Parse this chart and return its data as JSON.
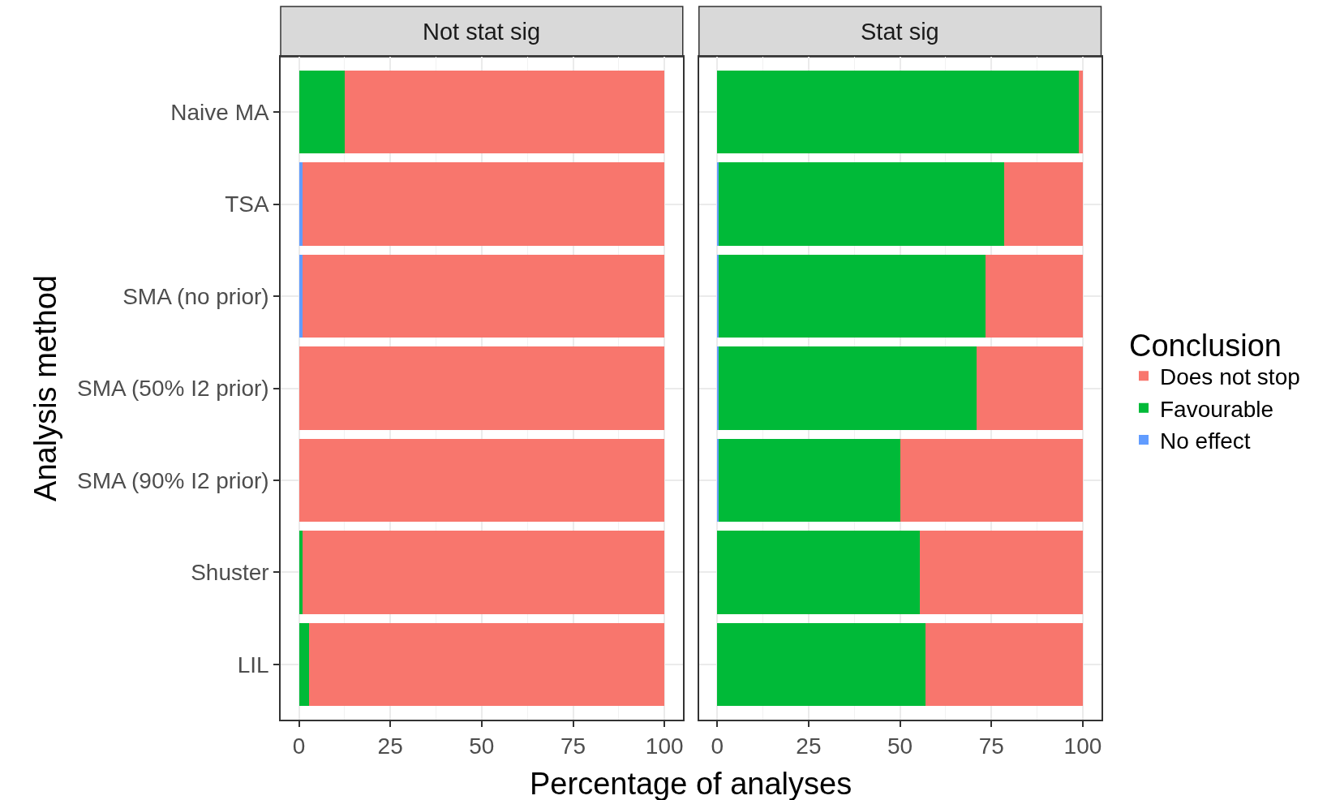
{
  "chart_data": [
    {
      "type": "bar",
      "orientation": "horizontal",
      "stacked": true,
      "title": "Not stat sig",
      "xlabel": "Percentage of analyses",
      "ylabel": "Analysis method",
      "legend": "right",
      "categories": [
        "Naive MA",
        "TSA",
        "SMA (no prior)",
        "SMA (50% I2 prior)",
        "SMA (90% I2 prior)",
        "Shuster",
        "LIL"
      ],
      "series": [
        {
          "name": "No effect",
          "color": "#619cff",
          "values": [
            0,
            0.9,
            0.9,
            0,
            0,
            0,
            0
          ]
        },
        {
          "name": "Favourable",
          "color": "#00ba38",
          "values": [
            12.5,
            0,
            0,
            0,
            0,
            0.9,
            2.8
          ]
        },
        {
          "name": "Does not stop",
          "color": "#f8766d",
          "values": [
            87.5,
            99.1,
            99.1,
            100,
            100,
            99.1,
            97.2
          ]
        }
      ],
      "xlim": [
        -5,
        105
      ],
      "xticks": [
        0,
        25,
        50,
        75,
        100
      ],
      "grid": true
    },
    {
      "type": "bar",
      "orientation": "horizontal",
      "stacked": true,
      "title": "Stat sig",
      "legend": "right",
      "legend_title": "Conclusion",
      "tick_labels": "x",
      "categories": [
        "Naive MA",
        "TSA",
        "SMA (no prior)",
        "SMA (50% I2 prior)",
        "SMA (90% I2 prior)",
        "Shuster",
        "LIL"
      ],
      "series": [
        {
          "name": "No effect",
          "color": "#619cff",
          "values": [
            0,
            0.3,
            0.3,
            0.3,
            0.3,
            0,
            0
          ]
        },
        {
          "name": "Favourable",
          "color": "#00ba38",
          "values": [
            99,
            78.2,
            73,
            70.7,
            49.8,
            55.3,
            57
          ]
        },
        {
          "name": "Does not stop",
          "color": "#f8766d",
          "values": [
            1,
            21.5,
            26.7,
            29,
            49.9,
            44.7,
            43
          ]
        }
      ],
      "xlim": [
        -5,
        105
      ],
      "xticks": [
        0,
        25,
        50,
        75,
        100
      ],
      "grid": true
    }
  ]
}
